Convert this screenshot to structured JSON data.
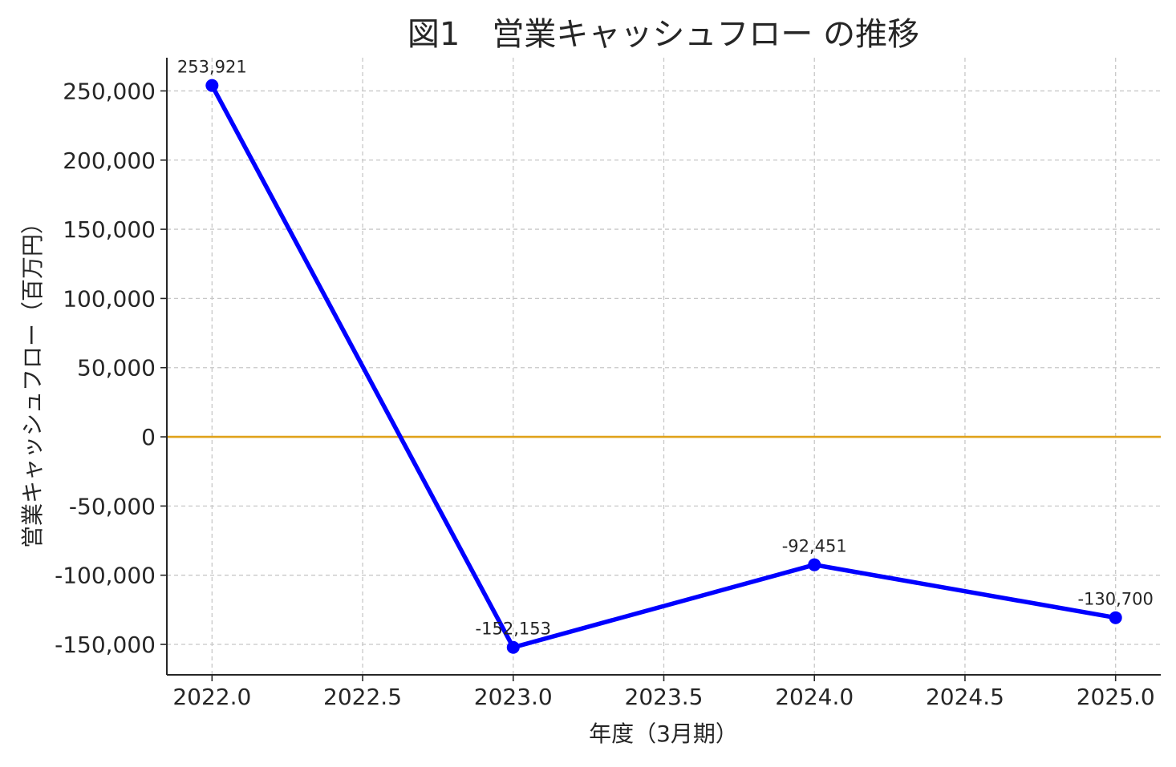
{
  "chart_data": {
    "type": "line",
    "title": "図1　営業キャッシュフロー の推移",
    "xlabel": "年度（3月期）",
    "ylabel": "営業キャッシュフロー（百万円）",
    "x": [
      2022.0,
      2023.0,
      2024.0,
      2025.0
    ],
    "series": [
      {
        "values": [
          253921,
          -152153,
          -92451,
          -130700
        ],
        "color": "#0000ff",
        "data_labels": [
          "253,921",
          "-152,153",
          "-92,451",
          "-130,700"
        ]
      }
    ],
    "xlim": [
      2021.85,
      2025.15
    ],
    "ylim": [
      -172000,
      274000
    ],
    "xticks": [
      2022.0,
      2022.5,
      2023.0,
      2023.5,
      2024.0,
      2024.5,
      2025.0
    ],
    "xtick_labels": [
      "2022.0",
      "2022.5",
      "2023.0",
      "2023.5",
      "2024.0",
      "2024.5",
      "2025.0"
    ],
    "yticks": [
      250000,
      200000,
      150000,
      100000,
      50000,
      0,
      -50000,
      -100000,
      -150000
    ],
    "ytick_labels": [
      "250,000",
      "200,000",
      "150,000",
      "100,000",
      "50,000",
      "0",
      "-50,000",
      "-100,000",
      "-150,000"
    ],
    "reference_line": {
      "y": 0,
      "color": "#e0a21a"
    },
    "grid": true,
    "grid_style": "dashed"
  }
}
